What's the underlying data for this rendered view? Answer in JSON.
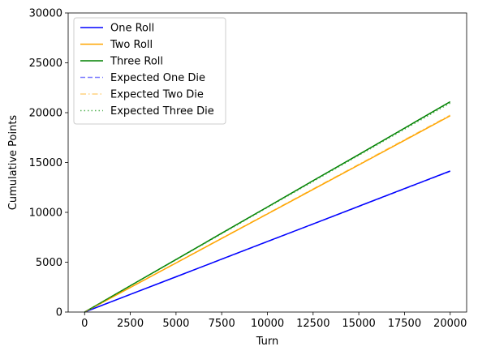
{
  "chart_data": {
    "type": "line",
    "title": "",
    "xlabel": "Turn",
    "ylabel": "Cumulative Points",
    "xlim": [
      -900,
      20900
    ],
    "ylim": [
      0,
      30000
    ],
    "xticks": [
      0,
      2500,
      5000,
      7500,
      10000,
      12500,
      15000,
      17500,
      20000
    ],
    "yticks": [
      0,
      5000,
      10000,
      15000,
      20000,
      25000,
      30000
    ],
    "grid": false,
    "legend_position": "top-left",
    "series": [
      {
        "name": "One Roll",
        "color": "#0000ff",
        "style": "solid",
        "opacity": 1,
        "x": [
          0,
          2500,
          5000,
          7500,
          10000,
          12500,
          15000,
          17500,
          20000
        ],
        "y": [
          0,
          1770,
          3540,
          5310,
          7080,
          8840,
          10610,
          12380,
          14150
        ]
      },
      {
        "name": "Two Roll",
        "color": "#ffa500",
        "style": "solid",
        "opacity": 1,
        "x": [
          0,
          2500,
          5000,
          7500,
          10000,
          12500,
          15000,
          17500,
          20000
        ],
        "y": [
          0,
          2460,
          4920,
          7380,
          9840,
          12300,
          14760,
          17220,
          19680
        ]
      },
      {
        "name": "Three Roll",
        "color": "#008000",
        "style": "solid",
        "opacity": 1,
        "x": [
          0,
          2500,
          5000,
          7500,
          10000,
          12500,
          15000,
          17500,
          20000
        ],
        "y": [
          0,
          2640,
          5270,
          7910,
          10540,
          13180,
          15800,
          18450,
          21100
        ]
      },
      {
        "name": "Expected One Die",
        "color": "#0000ff",
        "style": "dashed",
        "opacity": 0.5,
        "x": [
          0,
          20000
        ],
        "y": [
          0,
          14120
        ]
      },
      {
        "name": "Expected Two Die",
        "color": "#ffa500",
        "style": "dashdot",
        "opacity": 0.5,
        "x": [
          0,
          20000
        ],
        "y": [
          0,
          19760
        ]
      },
      {
        "name": "Expected Three Die",
        "color": "#2ca02c",
        "style": "dotted",
        "opacity": 0.8,
        "x": [
          0,
          20000
        ],
        "y": [
          0,
          20960
        ]
      }
    ]
  }
}
